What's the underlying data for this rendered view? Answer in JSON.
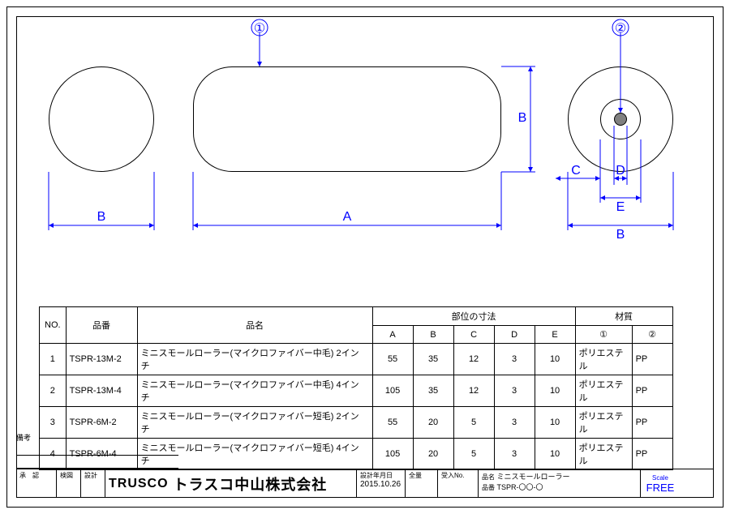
{
  "callouts": {
    "one": "①",
    "two": "②"
  },
  "dims": {
    "A": "A",
    "B": "B",
    "C": "C",
    "D": "D",
    "E": "E"
  },
  "table": {
    "headers": {
      "no": "NO.",
      "code": "品番",
      "name": "品名",
      "dimgroup": "部位の寸法",
      "matgroup": "材質",
      "A": "A",
      "B": "B",
      "C": "C",
      "D": "D",
      "E": "E",
      "m1": "①",
      "m2": "②"
    },
    "rows": [
      {
        "no": "1",
        "code": "TSPR-13M-2",
        "name": "ミニスモールローラー(マイクロファイバー中毛) 2インチ",
        "A": "55",
        "B": "35",
        "C": "12",
        "D": "3",
        "E": "10",
        "m1": "ポリエステル",
        "m2": "PP"
      },
      {
        "no": "2",
        "code": "TSPR-13M-4",
        "name": "ミニスモールローラー(マイクロファイバー中毛) 4インチ",
        "A": "105",
        "B": "35",
        "C": "12",
        "D": "3",
        "E": "10",
        "m1": "ポリエステル",
        "m2": "PP"
      },
      {
        "no": "3",
        "code": "TSPR-6M-2",
        "name": "ミニスモールローラー(マイクロファイバー短毛) 2インチ",
        "A": "55",
        "B": "20",
        "C": "5",
        "D": "3",
        "E": "10",
        "m1": "ポリエステル",
        "m2": "PP"
      },
      {
        "no": "4",
        "code": "TSPR-6M-4",
        "name": "ミニスモールローラー(マイクロファイバー短毛) 4インチ",
        "A": "105",
        "B": "20",
        "C": "5",
        "D": "3",
        "E": "10",
        "m1": "ポリエステル",
        "m2": "PP"
      }
    ]
  },
  "titleblock": {
    "remarks_label": "備考",
    "approve": "承　認",
    "check": "検図",
    "design": "設計",
    "company_logo": "TRUSCO",
    "company": "トラスコ中山株式会社",
    "date_label": "設計年月日",
    "date": "2015.10.26",
    "weight_label": "全量",
    "orderno_label": "受入No.",
    "name_label": "品名",
    "name": "ミニスモールローラー",
    "code_label": "品番",
    "code": "TSPR-〇〇-〇",
    "scale_label": "Scale",
    "scale": "FREE"
  },
  "style": {
    "blue": "#0000ff",
    "gray": "#808080"
  }
}
